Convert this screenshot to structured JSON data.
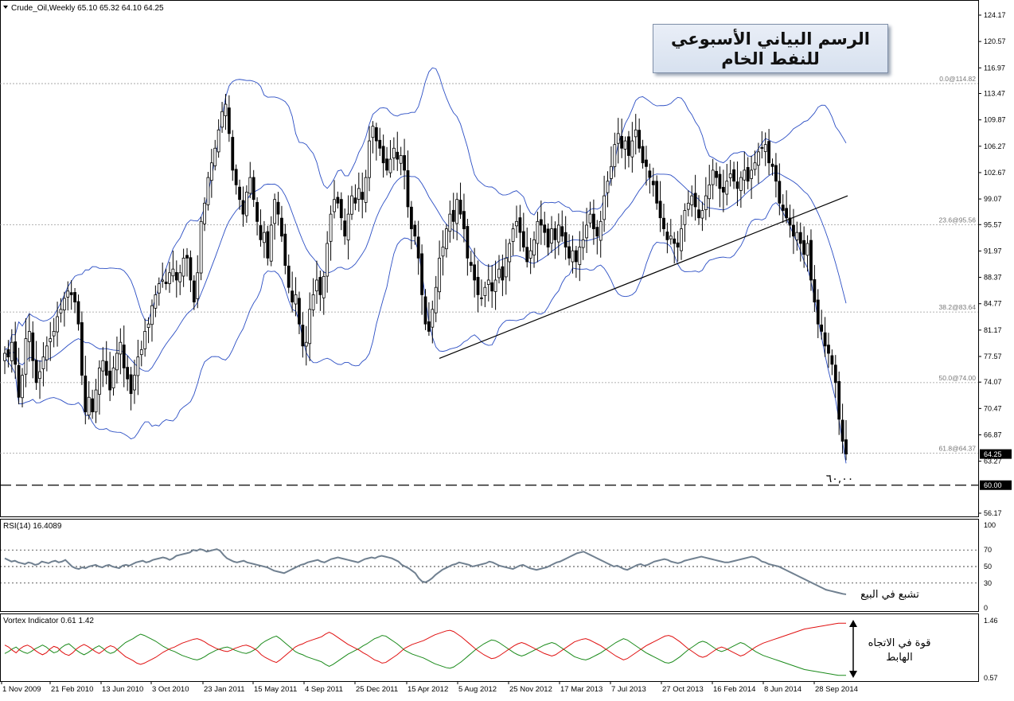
{
  "main_header": "Crude_Oil,Weekly  65.10 65.32 64.10 64.25",
  "title_line1": "الرسم البياني الأسبوعي",
  "title_line2": "للنفط الخام",
  "level_annotation": "٦٠,٠٠",
  "rsi_header": "RSI(14) 16.4089",
  "rsi_annotation": "تشبع في البيع",
  "vortex_header": "Vortex Indicator 0.61 1.42",
  "vortex_annotation_line1": "قوة في الاتجاه",
  "vortex_annotation_line2": "الهابط",
  "colors": {
    "candles": "#000000",
    "bands": "#2b4ec4",
    "rsi": "#708090",
    "vi_plus": "#1a8a1a",
    "vi_minus": "#e01010",
    "grid": "#9a9a9a",
    "background": "#ffffff"
  },
  "chart_data": [
    {
      "type": "candlestick",
      "title": "Crude_Oil,Weekly",
      "ohlc_last": {
        "open": 65.1,
        "high": 65.32,
        "low": 64.1,
        "close": 64.25
      },
      "y_ticks": [
        124.17,
        120.57,
        116.97,
        113.47,
        109.87,
        106.27,
        102.67,
        99.07,
        95.57,
        91.97,
        88.37,
        84.77,
        81.17,
        77.57,
        74.07,
        70.47,
        66.87,
        63.27,
        56.17
      ],
      "ylim": [
        56.17,
        124.17
      ],
      "price_badges": [
        "64.25",
        "60.00"
      ],
      "x_ticks": [
        "1 Nov 2009",
        "21 Feb 2010",
        "13 Jun 2010",
        "3 Oct 2010",
        "23 Jan 2011",
        "15 May 2011",
        "4 Sep 2011",
        "25 Dec 2011",
        "15 Apr 2012",
        "5 Aug 2012",
        "25 Nov 2012",
        "17 Mar 2013",
        "7 Jul 2013",
        "27 Oct 2013",
        "16 Feb 2014",
        "8 Jun 2014",
        "28 Sep 2014"
      ],
      "fib_levels": [
        {
          "label": "0.0@114.82",
          "value": 114.82
        },
        {
          "label": "23.6@95.56",
          "value": 95.56
        },
        {
          "label": "38.2@83.64",
          "value": 83.64
        },
        {
          "label": "50.0@74.00",
          "value": 74.0
        },
        {
          "label": "61.8@64.37",
          "value": 64.37
        }
      ],
      "horizontal_line": {
        "label": "60.00",
        "value": 60.0
      },
      "trendline": {
        "from": {
          "x": "15 Apr 2012",
          "y": 77.3
        },
        "to": {
          "x": "30 Nov 2014",
          "y": 99.5
        }
      },
      "series": [
        {
          "name": "close",
          "type": "candles",
          "values": [
            78.0,
            77.5,
            79.5,
            76.5,
            72.0,
            75.0,
            80.0,
            81.0,
            77.0,
            74.0,
            75.5,
            77.5,
            79.0,
            80.0,
            81.0,
            83.0,
            84.0,
            85.5,
            86.5,
            86.0,
            85.0,
            82.0,
            75.0,
            70.0,
            72.0,
            70.0,
            73.0,
            76.0,
            77.0,
            75.0,
            73.0,
            76.0,
            78.0,
            79.5,
            76.0,
            74.5,
            72.5,
            75.0,
            77.5,
            78.5,
            81.0,
            82.0,
            84.5,
            86.0,
            87.5,
            88.0,
            87.5,
            89.0,
            89.5,
            88.0,
            89.0,
            91.0,
            91.0,
            88.0,
            85.0,
            89.0,
            96.0,
            98.5,
            102.0,
            104.0,
            106.0,
            108.5,
            111.0,
            112.0,
            108.0,
            103.0,
            101.0,
            99.0,
            97.0,
            100.0,
            102.0,
            99.0,
            96.0,
            93.5,
            94.5,
            91.0,
            95.5,
            99.0,
            97.0,
            94.0,
            90.0,
            87.0,
            85.0,
            86.0,
            82.0,
            79.0,
            79.5,
            84.0,
            86.0,
            88.0,
            86.0,
            88.5,
            93.0,
            97.0,
            99.0,
            98.5,
            96.5,
            94.0,
            97.0,
            99.5,
            98.5,
            100.5,
            99.0,
            102.0,
            107.0,
            109.0,
            107.0,
            106.0,
            104.0,
            103.0,
            104.5,
            106.0,
            104.5,
            105.0,
            103.0,
            98.0,
            95.0,
            94.0,
            91.0,
            86.0,
            82.0,
            81.0,
            84.0,
            87.0,
            91.0,
            92.5,
            95.0,
            97.0,
            96.0,
            99.0,
            97.0,
            95.0,
            91.0,
            90.0,
            88.0,
            86.0,
            85.5,
            87.0,
            88.0,
            86.5,
            88.0,
            89.5,
            88.0,
            91.0,
            93.0,
            95.0,
            96.0,
            94.5,
            92.5,
            90.5,
            92.0,
            93.5,
            96.0,
            95.5,
            94.5,
            92.5,
            95.0,
            93.5,
            95.5,
            94.0,
            92.5,
            91.0,
            92.0,
            90.5,
            92.5,
            93.5,
            95.5,
            97.0,
            95.0,
            94.0,
            96.0,
            99.5,
            101.5,
            103.5,
            106.5,
            108.0,
            106.0,
            107.0,
            105.0,
            107.0,
            108.5,
            106.0,
            104.0,
            103.5,
            102.0,
            101.0,
            98.5,
            96.5,
            95.0,
            93.5,
            94.0,
            93.0,
            92.5,
            95.0,
            97.5,
            98.5,
            99.5,
            98.0,
            96.5,
            97.5,
            99.5,
            101.0,
            103.0,
            102.0,
            100.5,
            100.0,
            101.5,
            102.5,
            101.5,
            100.5,
            102.0,
            103.0,
            101.5,
            103.0,
            104.0,
            105.5,
            106.0,
            106.5,
            104.0,
            103.5,
            101.5,
            98.5,
            97.5,
            96.5,
            95.5,
            94.0,
            94.5,
            93.0,
            91.5,
            93.0,
            88.0,
            85.0,
            82.0,
            81.0,
            79.0,
            78.0,
            76.5,
            74.0,
            69.0,
            66.0,
            64.25
          ]
        },
        {
          "name": "upper_band",
          "type": "line",
          "values": []
        },
        {
          "name": "middle_band",
          "type": "line",
          "values": []
        },
        {
          "name": "lower_band",
          "type": "line",
          "values": []
        }
      ]
    },
    {
      "type": "line",
      "title": "RSI(14) 16.4089",
      "ylim": [
        0,
        100
      ],
      "y_ticks": [
        100,
        70,
        50,
        30,
        0
      ],
      "reference_lines": [
        70,
        50,
        30
      ],
      "series": [
        {
          "name": "RSI(14)",
          "values": [
            60,
            58,
            56,
            57,
            55,
            54,
            53,
            55,
            54,
            52,
            53,
            56,
            55,
            54,
            56,
            57,
            55,
            56,
            58,
            54,
            50,
            48,
            47,
            49,
            48,
            50,
            51,
            52,
            50,
            49,
            51,
            52,
            50,
            49,
            48,
            51,
            52,
            51,
            53,
            55,
            56,
            57,
            55,
            56,
            58,
            59,
            60,
            61,
            60,
            58,
            60,
            63,
            64,
            65,
            66,
            67,
            70,
            69,
            71,
            70,
            68,
            69,
            70,
            71,
            69,
            64,
            60,
            58,
            56,
            55,
            56,
            57,
            55,
            54,
            53,
            52,
            51,
            50,
            49,
            47,
            45,
            44,
            43,
            42,
            44,
            46,
            48,
            50,
            52,
            53,
            55,
            56,
            57,
            58,
            56,
            55,
            57,
            59,
            60,
            61,
            60,
            59,
            58,
            57,
            56,
            55,
            57,
            59,
            60,
            61,
            60,
            62,
            63,
            62,
            61,
            60,
            58,
            56,
            52,
            50,
            48,
            45,
            42,
            36,
            32,
            31,
            33,
            36,
            40,
            43,
            46,
            48,
            50,
            52,
            53,
            55,
            54,
            53,
            52,
            50,
            51,
            52,
            53,
            54,
            56,
            55,
            53,
            51,
            50,
            49,
            48,
            47,
            49,
            51,
            52,
            50,
            48,
            47,
            46,
            47,
            48,
            49,
            51,
            53,
            55,
            56,
            58,
            60,
            62,
            64,
            66,
            67,
            68,
            66,
            64,
            62,
            60,
            58,
            56,
            54,
            52,
            50,
            51,
            49,
            47,
            46,
            48,
            50,
            52,
            53,
            51,
            52,
            54,
            56,
            57,
            58,
            59,
            58,
            56,
            55,
            54,
            55,
            57,
            58,
            59,
            60,
            61,
            62,
            61,
            60,
            59,
            58,
            57,
            56,
            55,
            55,
            56,
            57,
            58,
            59,
            60,
            61,
            62,
            61,
            59,
            56,
            55,
            53,
            52,
            51,
            50,
            48,
            46,
            44,
            42,
            40,
            38,
            36,
            34,
            32,
            30,
            28,
            26,
            24,
            22,
            21,
            20,
            19,
            18,
            17,
            16.4
          ]
        }
      ]
    },
    {
      "type": "line",
      "title": "Vortex Indicator 0.61 1.42",
      "ylim": [
        0.57,
        1.46
      ],
      "y_ticks": [
        1.46,
        0.57
      ],
      "series": [
        {
          "name": "VI+",
          "values": [
            0.95,
            0.98,
            1.02,
            1.05,
            1.0,
            0.97,
            0.95,
            0.98,
            1.02,
            1.05,
            1.08,
            1.05,
            1.0,
            0.96,
            0.98,
            1.04,
            1.08,
            1.1,
            1.05,
            1.0,
            0.96,
            0.93,
            0.96,
            1.0,
            1.04,
            1.07,
            1.03,
            0.98,
            0.95,
            0.97,
            1.02,
            1.07,
            1.12,
            1.15,
            1.18,
            1.22,
            1.25,
            1.23,
            1.2,
            1.17,
            1.14,
            1.1,
            1.06,
            1.03,
            1.0,
            0.98,
            0.95,
            0.92,
            0.9,
            0.88,
            0.86,
            0.85,
            0.87,
            0.9,
            0.94,
            0.97,
            1.0,
            1.02,
            1.04,
            1.05,
            1.03,
            1.0,
            0.98,
            0.96,
            0.95,
            0.97,
            1.0,
            1.04,
            1.1,
            1.14,
            1.17,
            1.2,
            1.22,
            1.18,
            1.13,
            1.08,
            1.03,
            0.98,
            0.95,
            0.93,
            0.9,
            0.88,
            0.86,
            0.84,
            0.82,
            0.78,
            0.75,
            0.78,
            0.82,
            0.86,
            0.9,
            0.94,
            0.97,
            1.0,
            1.03,
            1.07,
            1.1,
            1.14,
            1.18,
            1.2,
            1.23,
            1.22,
            1.18,
            1.14,
            1.1,
            1.05,
            1.0,
            0.97,
            0.94,
            0.92,
            0.9,
            0.88,
            0.85,
            0.82,
            0.79,
            0.77,
            0.75,
            0.73,
            0.72,
            0.74,
            0.78,
            0.82,
            0.87,
            0.92,
            0.97,
            1.02,
            1.06,
            1.1,
            1.13,
            1.16,
            1.15,
            1.12,
            1.08,
            1.04,
            1.0,
            0.96,
            0.93,
            0.91,
            0.93,
            0.96,
            0.99,
            1.02,
            1.05,
            1.08,
            1.1,
            1.12,
            1.1,
            1.06,
            1.02,
            0.98,
            0.94,
            0.9,
            0.88,
            0.86,
            0.85,
            0.87,
            0.9,
            0.93,
            0.96,
            1.0,
            1.04,
            1.08,
            1.12,
            1.15,
            1.18,
            1.16,
            1.12,
            1.08,
            1.04,
            1.0,
            0.96,
            0.93,
            0.9,
            0.87,
            0.84,
            0.81,
            0.8,
            0.82,
            0.86,
            0.9,
            0.95,
            1.0,
            1.04,
            1.08,
            1.12,
            1.14,
            1.12,
            1.08,
            1.04,
            1.0,
            0.98,
            1.0,
            1.03,
            1.06,
            1.09,
            1.12,
            1.1,
            1.06,
            1.02,
            0.98,
            0.95,
            0.92,
            0.9,
            0.88,
            0.86,
            0.84,
            0.82,
            0.8,
            0.78,
            0.76,
            0.74,
            0.72,
            0.7,
            0.69,
            0.68,
            0.67,
            0.66,
            0.65,
            0.64,
            0.63,
            0.62,
            0.61,
            0.61,
            0.61
          ]
        },
        {
          "name": "VI-",
          "values": [
            1.08,
            1.05,
            1.0,
            0.96,
            1.02,
            1.06,
            1.08,
            1.05,
            1.0,
            0.96,
            0.93,
            0.96,
            1.02,
            1.06,
            1.04,
            0.98,
            0.94,
            0.92,
            0.96,
            1.02,
            1.06,
            1.09,
            1.06,
            1.02,
            0.98,
            0.95,
            0.99,
            1.04,
            1.07,
            1.05,
            1.0,
            0.95,
            0.9,
            0.87,
            0.84,
            0.8,
            0.78,
            0.8,
            0.83,
            0.86,
            0.89,
            0.93,
            0.97,
            1.0,
            1.03,
            1.05,
            1.08,
            1.11,
            1.13,
            1.15,
            1.17,
            1.18,
            1.16,
            1.13,
            1.09,
            1.06,
            1.03,
            1.01,
            0.99,
            0.98,
            1.0,
            1.03,
            1.05,
            1.07,
            1.08,
            1.06,
            1.03,
            0.99,
            0.93,
            0.89,
            0.86,
            0.83,
            0.81,
            0.85,
            0.9,
            0.95,
            1.0,
            1.05,
            1.08,
            1.1,
            1.13,
            1.15,
            1.17,
            1.19,
            1.21,
            1.25,
            1.28,
            1.25,
            1.21,
            1.17,
            1.13,
            1.09,
            1.06,
            1.03,
            1.0,
            0.96,
            0.93,
            0.89,
            0.85,
            0.83,
            0.8,
            0.81,
            0.85,
            0.89,
            0.93,
            0.98,
            1.03,
            1.06,
            1.09,
            1.11,
            1.13,
            1.15,
            1.18,
            1.21,
            1.24,
            1.26,
            1.28,
            1.3,
            1.31,
            1.29,
            1.25,
            1.21,
            1.16,
            1.11,
            1.06,
            1.01,
            0.97,
            0.93,
            0.9,
            0.87,
            0.88,
            0.91,
            0.95,
            0.99,
            1.03,
            1.07,
            1.1,
            1.12,
            1.1,
            1.07,
            1.04,
            1.01,
            0.98,
            0.95,
            0.93,
            0.91,
            0.93,
            0.97,
            1.01,
            1.05,
            1.09,
            1.13,
            1.15,
            1.17,
            1.18,
            1.16,
            1.13,
            1.1,
            1.07,
            1.03,
            0.99,
            0.95,
            0.91,
            0.88,
            0.85,
            0.87,
            0.91,
            0.95,
            0.99,
            1.03,
            1.07,
            1.1,
            1.13,
            1.16,
            1.19,
            1.22,
            1.23,
            1.21,
            1.17,
            1.13,
            1.08,
            1.03,
            0.99,
            0.95,
            0.91,
            0.89,
            0.91,
            0.95,
            0.99,
            1.03,
            1.05,
            1.03,
            1.0,
            0.97,
            0.94,
            0.91,
            0.93,
            0.97,
            1.01,
            1.05,
            1.08,
            1.11,
            1.13,
            1.15,
            1.17,
            1.19,
            1.21,
            1.23,
            1.25,
            1.27,
            1.29,
            1.31,
            1.33,
            1.34,
            1.35,
            1.36,
            1.37,
            1.38,
            1.39,
            1.4,
            1.41,
            1.42,
            1.42,
            1.42
          ]
        }
      ]
    }
  ]
}
